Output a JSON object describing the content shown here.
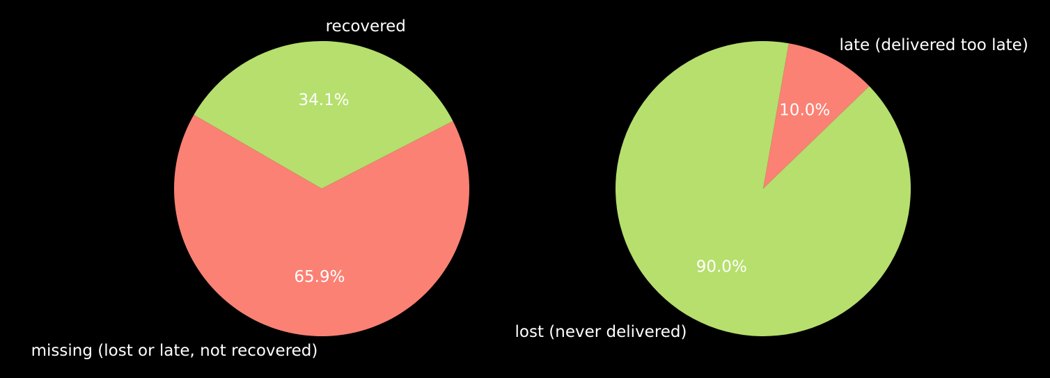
{
  "chart_data": [
    {
      "type": "pie",
      "title": "",
      "slices": [
        {
          "label": "recovered",
          "value": 34.1,
          "pct_label": "34.1%",
          "color": "#b6df6d"
        },
        {
          "label": "missing (lost or late, not recovered)",
          "value": 65.9,
          "pct_label": "65.9%",
          "color": "#fa8174"
        }
      ]
    },
    {
      "type": "pie",
      "title": "",
      "slices": [
        {
          "label": "late (delivered too late)",
          "value": 10.0,
          "pct_label": "10.0%",
          "color": "#fa8174"
        },
        {
          "label": "lost (never delivered)",
          "value": 90.0,
          "pct_label": "90.0%",
          "color": "#b6df6d"
        }
      ]
    }
  ]
}
